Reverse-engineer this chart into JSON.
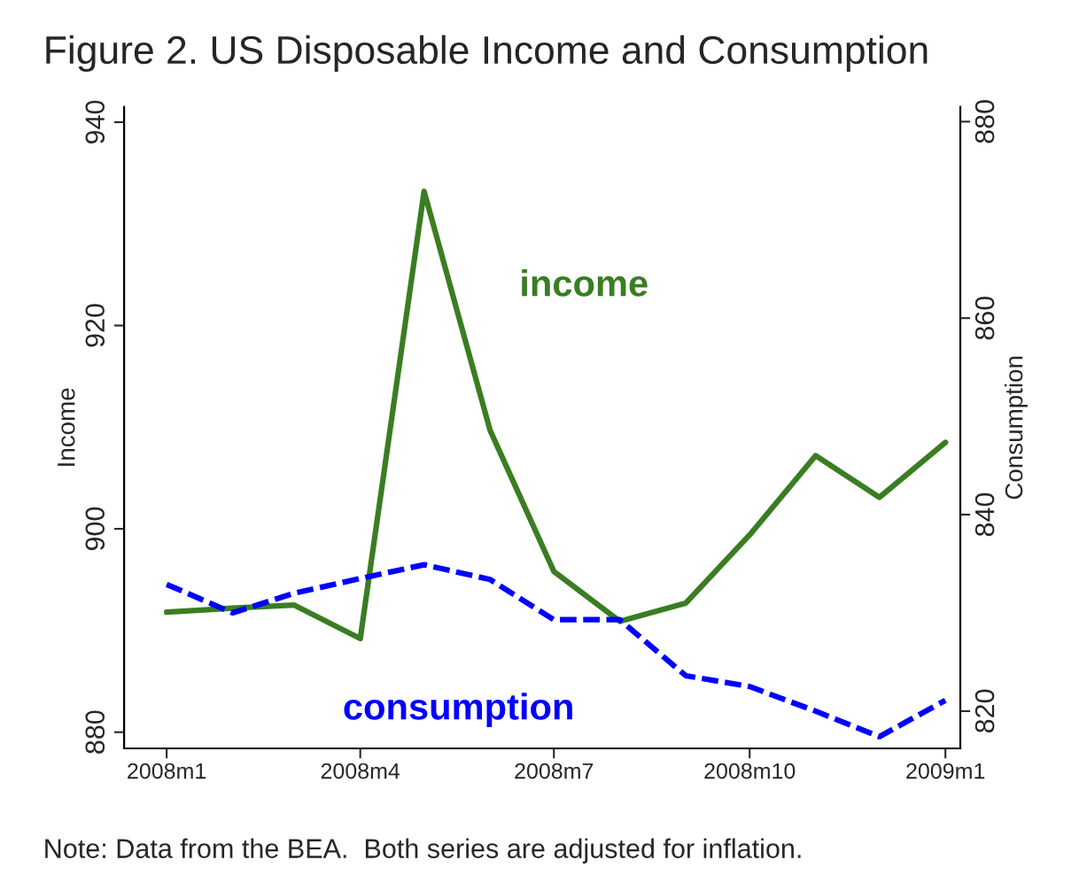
{
  "chart_data": {
    "type": "line",
    "title": "Figure 2. US Disposable Income and Consumption",
    "ylabel": "Income",
    "y2label": "Consumption",
    "x": [
      "2008-01",
      "2008-02",
      "2008-03",
      "2008-04",
      "2008-05",
      "2008-06",
      "2008-07",
      "2008-08",
      "2008-09",
      "2008-10",
      "2008-11",
      "2008-12",
      "2009-01"
    ],
    "series": [
      {
        "name": "income",
        "color": "#3a7d22",
        "line_style": "solid",
        "values": [
          891.8,
          892.2,
          892.5,
          889.2,
          933.2,
          909.7,
          895.8,
          890.9,
          892.7,
          899.4,
          907.2,
          903.1,
          908.5
        ]
      },
      {
        "name": "consumption",
        "color": "#0000ff",
        "line_style": "dashed",
        "axis": "y2",
        "values": [
          832.9,
          830.0,
          832.0,
          833.5,
          834.9,
          833.4,
          829.3,
          829.3,
          823.6,
          822.5,
          820.0,
          817.4,
          821.1
        ]
      }
    ],
    "xlim": [
      "2007-12-12",
      "2009-01-08"
    ],
    "xticks": [
      {
        "value": "2008-01",
        "label": "2008m1"
      },
      {
        "value": "2008-04",
        "label": "2008m4"
      },
      {
        "value": "2008-07",
        "label": "2008m7"
      },
      {
        "value": "2008-10",
        "label": "2008m10"
      },
      {
        "value": "2009-01",
        "label": "2009m1"
      }
    ],
    "ylim": [
      878.4,
      941.5
    ],
    "yticks": [
      880,
      900,
      920,
      940
    ],
    "y2lim": [
      816.2,
      881.5
    ],
    "y2ticks": [
      820,
      840,
      860,
      880
    ],
    "grid": false,
    "legend": false,
    "marker": "none",
    "annotations": [
      "Note: Data from the BEA.  Both series are adjusted for inflation."
    ]
  }
}
